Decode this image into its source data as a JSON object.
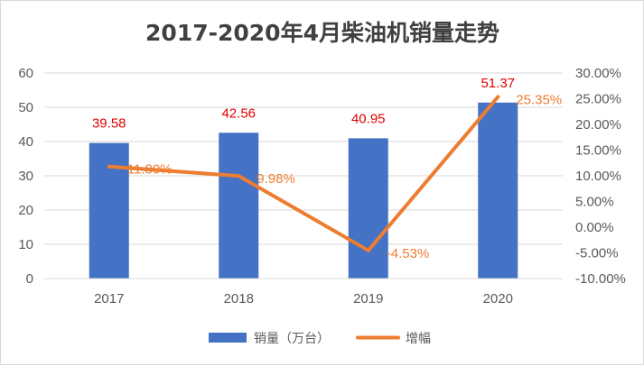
{
  "chart_data": {
    "type": "bar",
    "title": "2017-2020年4月柴油机销量走势",
    "categories": [
      "2017",
      "2018",
      "2019",
      "2020"
    ],
    "series": [
      {
        "name": "销量（万台）",
        "type": "bar",
        "axis": "left",
        "values": [
          39.58,
          42.56,
          40.95,
          51.37
        ],
        "labels": [
          "39.58",
          "42.56",
          "40.95",
          "51.37"
        ],
        "color": "#4472c4"
      },
      {
        "name": "增幅",
        "type": "line",
        "axis": "right",
        "values": [
          11.8,
          9.98,
          -4.53,
          25.35
        ],
        "labels": [
          "11.80%",
          "9.98%",
          "-4.53%",
          "25.35%"
        ],
        "color": "#ed7d31"
      }
    ],
    "y_left": {
      "ylim": [
        0,
        60
      ],
      "ticks": [
        0,
        10,
        20,
        30,
        40,
        50,
        60
      ],
      "tick_labels": [
        "0",
        "10",
        "20",
        "30",
        "40",
        "50",
        "60"
      ]
    },
    "y_right": {
      "ylim": [
        -10,
        30
      ],
      "ticks": [
        -10,
        -5,
        0,
        5,
        10,
        15,
        20,
        25,
        30
      ],
      "tick_labels": [
        "-10.00%",
        "-5.00%",
        "0.00%",
        "5.00%",
        "10.00%",
        "15.00%",
        "20.00%",
        "25.00%",
        "30.00%"
      ]
    },
    "grid": true,
    "legend_position": "bottom",
    "bar_label_color": "#e00000",
    "line_label_color": "#ed7d31",
    "grid_color": "#d9d9d9"
  }
}
